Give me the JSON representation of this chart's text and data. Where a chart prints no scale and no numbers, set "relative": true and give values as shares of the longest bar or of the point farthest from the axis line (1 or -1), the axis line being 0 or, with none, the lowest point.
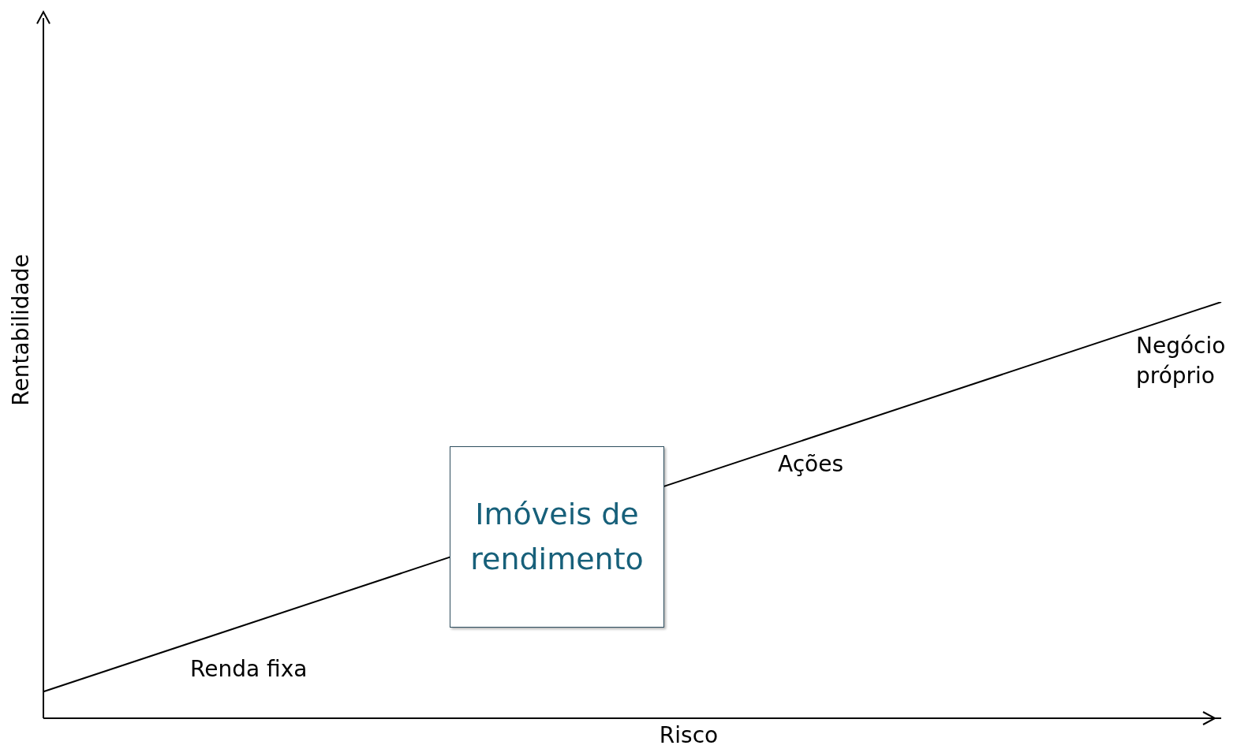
{
  "chart_data": {
    "type": "line",
    "xlabel": "Risco",
    "ylabel": "Rentabilidade",
    "relative": true,
    "categories": [
      null,
      null
    ],
    "series": [
      {
        "color": "#000000",
        "values": [
          0.064,
          1
        ]
      }
    ],
    "marker": "none",
    "line_style": "solid",
    "grid": false,
    "legend": false,
    "annotations": [
      "Renda fixa",
      "Imóveis de rendimento",
      "Ações",
      "Negócio próprio"
    ]
  }
}
